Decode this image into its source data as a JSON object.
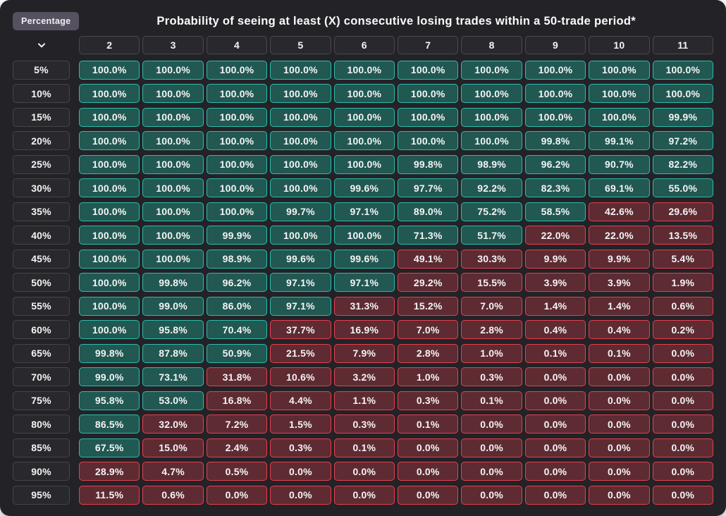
{
  "ui": {
    "badge_label": "Percentage",
    "corner_icon": "chevron-down-icon",
    "colors": {
      "page_bg": "#ffffff",
      "card_bg": "#232227",
      "badge_bg": "#55515e",
      "neutral_cell_bg": "#29282d",
      "neutral_cell_border": "#4b4a50",
      "green_bg": "#215852",
      "green_border": "#2cbcab",
      "red_bg": "#5e2b33",
      "red_border": "#e5404e",
      "text": "#f4f4f4"
    }
  },
  "chart_data": {
    "type": "heatmap",
    "title": "Probability of seeing at least (X) consecutive losing trades within a 50-trade period*",
    "row_axis_label": "Percentage",
    "columns": [
      "2",
      "3",
      "4",
      "5",
      "6",
      "7",
      "8",
      "9",
      "10",
      "11"
    ],
    "row_labels": [
      "5%",
      "10%",
      "15%",
      "20%",
      "25%",
      "30%",
      "35%",
      "40%",
      "45%",
      "50%",
      "55%",
      "60%",
      "65%",
      "70%",
      "75%",
      "80%",
      "85%",
      "90%",
      "95%"
    ],
    "value_format": "percent_one_decimal",
    "color_rule": {
      "green_if_gte": 50,
      "green": "#2cbcab",
      "red": "#e5404e"
    },
    "rows": [
      [
        100.0,
        100.0,
        100.0,
        100.0,
        100.0,
        100.0,
        100.0,
        100.0,
        100.0,
        100.0
      ],
      [
        100.0,
        100.0,
        100.0,
        100.0,
        100.0,
        100.0,
        100.0,
        100.0,
        100.0,
        100.0
      ],
      [
        100.0,
        100.0,
        100.0,
        100.0,
        100.0,
        100.0,
        100.0,
        100.0,
        100.0,
        99.9
      ],
      [
        100.0,
        100.0,
        100.0,
        100.0,
        100.0,
        100.0,
        100.0,
        99.8,
        99.1,
        97.2
      ],
      [
        100.0,
        100.0,
        100.0,
        100.0,
        100.0,
        99.8,
        98.9,
        96.2,
        90.7,
        82.2
      ],
      [
        100.0,
        100.0,
        100.0,
        100.0,
        99.6,
        97.7,
        92.2,
        82.3,
        69.1,
        55.0
      ],
      [
        100.0,
        100.0,
        100.0,
        99.7,
        97.1,
        89.0,
        75.2,
        58.5,
        42.6,
        29.6
      ],
      [
        100.0,
        100.0,
        99.9,
        100.0,
        100.0,
        71.3,
        51.7,
        22.0,
        22.0,
        13.5
      ],
      [
        100.0,
        100.0,
        98.9,
        99.6,
        99.6,
        49.1,
        30.3,
        9.9,
        9.9,
        5.4
      ],
      [
        100.0,
        99.8,
        96.2,
        97.1,
        97.1,
        29.2,
        15.5,
        3.9,
        3.9,
        1.9
      ],
      [
        100.0,
        99.0,
        86.0,
        97.1,
        31.3,
        15.2,
        7.0,
        1.4,
        1.4,
        0.6
      ],
      [
        100.0,
        95.8,
        70.4,
        37.7,
        16.9,
        7.0,
        2.8,
        0.4,
        0.4,
        0.2
      ],
      [
        99.8,
        87.8,
        50.9,
        21.5,
        7.9,
        2.8,
        1.0,
        0.1,
        0.1,
        0.0
      ],
      [
        99.0,
        73.1,
        31.8,
        10.6,
        3.2,
        1.0,
        0.3,
        0.0,
        0.0,
        0.0
      ],
      [
        95.8,
        53.0,
        16.8,
        4.4,
        1.1,
        0.3,
        0.1,
        0.0,
        0.0,
        0.0
      ],
      [
        86.5,
        32.0,
        7.2,
        1.5,
        0.3,
        0.1,
        0.0,
        0.0,
        0.0,
        0.0
      ],
      [
        67.5,
        15.0,
        2.4,
        0.3,
        0.1,
        0.0,
        0.0,
        0.0,
        0.0,
        0.0
      ],
      [
        28.9,
        4.7,
        0.5,
        0.0,
        0.0,
        0.0,
        0.0,
        0.0,
        0.0,
        0.0
      ],
      [
        11.5,
        0.6,
        0.0,
        0.0,
        0.0,
        0.0,
        0.0,
        0.0,
        0.0,
        0.0
      ]
    ]
  }
}
